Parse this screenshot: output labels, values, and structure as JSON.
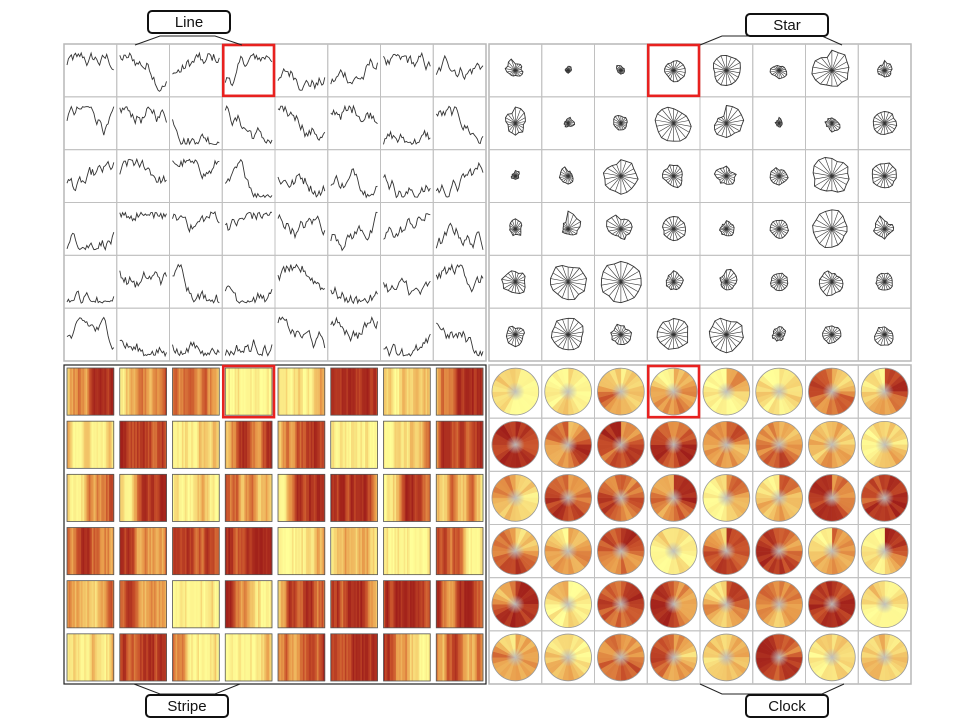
{
  "panels": {
    "line": {
      "label": "Line",
      "rows": 6,
      "cols": 8,
      "highlight": {
        "row": 0,
        "col": 3
      }
    },
    "star": {
      "label": "Star",
      "rows": 6,
      "cols": 8,
      "highlight": {
        "row": 0,
        "col": 3
      }
    },
    "stripe": {
      "label": "Stripe",
      "rows": 6,
      "cols": 8,
      "highlight": {
        "row": 0,
        "col": 3
      }
    },
    "clock": {
      "label": "Clock",
      "rows": 6,
      "cols": 8,
      "highlight": {
        "row": 0,
        "col": 3
      }
    }
  },
  "colors": {
    "highlight": "#e8211f",
    "grid": "#c0c0c0",
    "frame": "#222222",
    "line_stroke": "#333333",
    "ramp": [
      "#ffff99",
      "#f5d070",
      "#e89a4a",
      "#c8502a",
      "#a01f1a"
    ]
  }
}
